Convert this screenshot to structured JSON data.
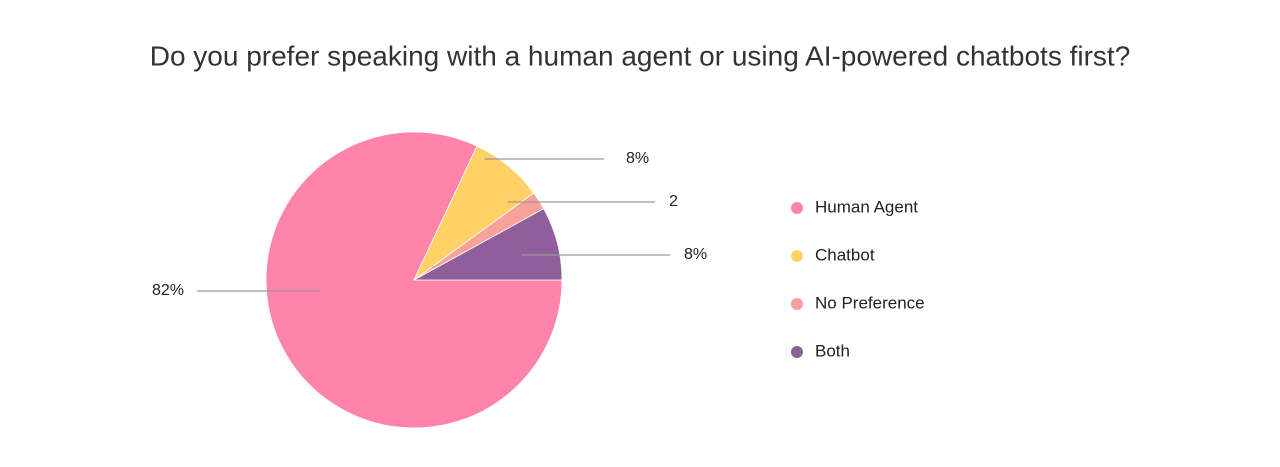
{
  "chart_data": {
    "type": "pie",
    "title": "Do you prefer speaking with a human agent or using AI-powered chatbots first?",
    "categories": [
      "Human Agent",
      "Chatbot",
      "No Preference",
      "Both"
    ],
    "values": [
      82,
      8,
      2,
      8
    ],
    "value_labels": [
      "82%",
      "8%",
      "2",
      "8%"
    ],
    "colors": [
      "#ff83ab",
      "#ffd166",
      "#f7a19a",
      "#8f5f9c"
    ],
    "legend": "right"
  }
}
